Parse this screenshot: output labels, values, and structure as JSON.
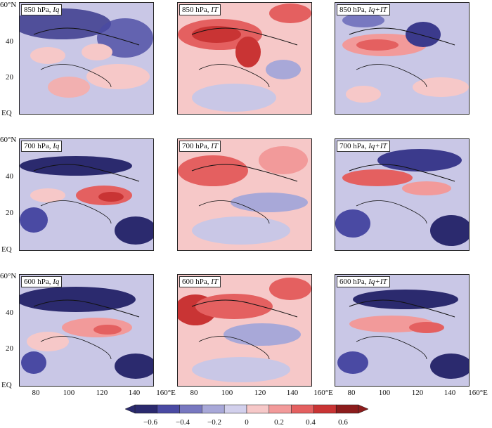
{
  "panels": [
    {
      "level": "850 hPa",
      "var": "Iq"
    },
    {
      "level": "850 hPa",
      "var": "IT"
    },
    {
      "level": "850 hPa",
      "var": "Iq+IT"
    },
    {
      "level": "700 hPa",
      "var": "Iq"
    },
    {
      "level": "700 hPa",
      "var": "IT"
    },
    {
      "level": "700 hPa",
      "var": "Iq+IT"
    },
    {
      "level": "600 hPa",
      "var": "Iq"
    },
    {
      "level": "600 hPa",
      "var": "IT"
    },
    {
      "level": "600 hPa",
      "var": "Iq+IT"
    }
  ],
  "axes": {
    "y_ticks": [
      "60°N",
      "40",
      "20",
      "EQ"
    ],
    "x_ticks": [
      "80",
      "100",
      "120",
      "140",
      "160°E"
    ]
  },
  "colorbar": {
    "ticks": [
      "−0.6",
      "−0.4",
      "−0.2",
      "0",
      "0.2",
      "0.4",
      "0.6"
    ],
    "colors": [
      "#2b2a6e",
      "#4a4aa3",
      "#7878c0",
      "#a8a8d8",
      "#d2d0ec",
      "#f6c8c8",
      "#f29a9a",
      "#e46060",
      "#c93434",
      "#8c1c1c"
    ]
  },
  "chart_data": {
    "type": "heatmap",
    "title": "",
    "xlabel": "",
    "ylabel": "",
    "x_range": [
      70,
      160
    ],
    "y_range": [
      0,
      60
    ],
    "value_range": [
      -0.6,
      0.6
    ],
    "rows": [
      "850 hPa",
      "700 hPa",
      "600 hPa"
    ],
    "columns": [
      "Iq",
      "IT",
      "Iq+IT"
    ]
  }
}
